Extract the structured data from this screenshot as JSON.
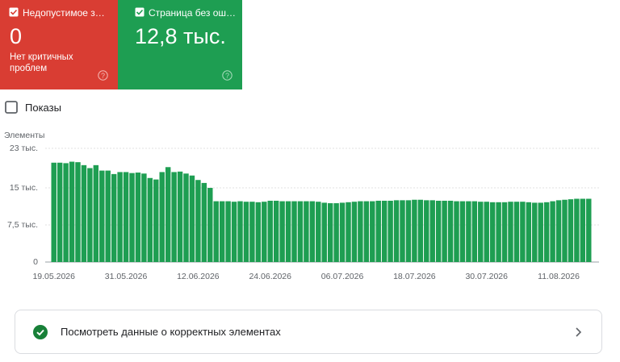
{
  "cards": [
    {
      "label": "Недопустимое з…",
      "value": "0",
      "note": "Нет критичных проблем"
    },
    {
      "label": "Страница без ош…",
      "value": "12,8 тыс."
    }
  ],
  "impressions_toggle": "Показы",
  "chart_data": {
    "type": "bar",
    "y_label": "Элементы",
    "color": "#1e9e52",
    "grid": true,
    "ylim": [
      0,
      23000
    ],
    "yticks": [
      0,
      {
        "value": 7500,
        "label": "7,5 тыс."
      },
      {
        "value": 15000,
        "label": "15 тыс."
      },
      {
        "value": 23000,
        "label": "23 тыс."
      }
    ],
    "categories": [
      "19.05.2026",
      null,
      null,
      null,
      null,
      null,
      null,
      null,
      null,
      null,
      null,
      null,
      "31.05.2026",
      null,
      null,
      null,
      null,
      null,
      null,
      null,
      null,
      null,
      null,
      null,
      "12.06.2026",
      null,
      null,
      null,
      null,
      null,
      null,
      null,
      null,
      null,
      null,
      null,
      "24.06.2026",
      null,
      null,
      null,
      null,
      null,
      null,
      null,
      null,
      null,
      null,
      null,
      "06.07.2026",
      null,
      null,
      null,
      null,
      null,
      null,
      null,
      null,
      null,
      null,
      null,
      "18.07.2026",
      null,
      null,
      null,
      null,
      null,
      null,
      null,
      null,
      null,
      null,
      null,
      "30.07.2026",
      null,
      null,
      null,
      null,
      null,
      null,
      null,
      null,
      null,
      null,
      null,
      "11.08.2026",
      null,
      null,
      null,
      null,
      null
    ],
    "values": [
      20100,
      20100,
      20000,
      20300,
      20200,
      19600,
      19000,
      19600,
      18500,
      18500,
      17800,
      18200,
      18200,
      18000,
      18100,
      17900,
      17000,
      16700,
      18200,
      19200,
      18200,
      18300,
      17900,
      17500,
      16600,
      16000,
      15000,
      12300,
      12300,
      12300,
      12200,
      12300,
      12200,
      12200,
      12100,
      12200,
      12400,
      12400,
      12300,
      12300,
      12300,
      12300,
      12300,
      12300,
      12200,
      12000,
      11900,
      11900,
      12000,
      12100,
      12200,
      12300,
      12300,
      12300,
      12400,
      12400,
      12400,
      12500,
      12500,
      12500,
      12600,
      12600,
      12500,
      12500,
      12400,
      12400,
      12400,
      12300,
      12300,
      12300,
      12300,
      12200,
      12200,
      12100,
      12100,
      12100,
      12200,
      12200,
      12200,
      12100,
      12000,
      12000,
      12100,
      12300,
      12500,
      12600,
      12700,
      12800,
      12800,
      12800
    ]
  },
  "link": "Посмотреть данные о корректных элементах"
}
